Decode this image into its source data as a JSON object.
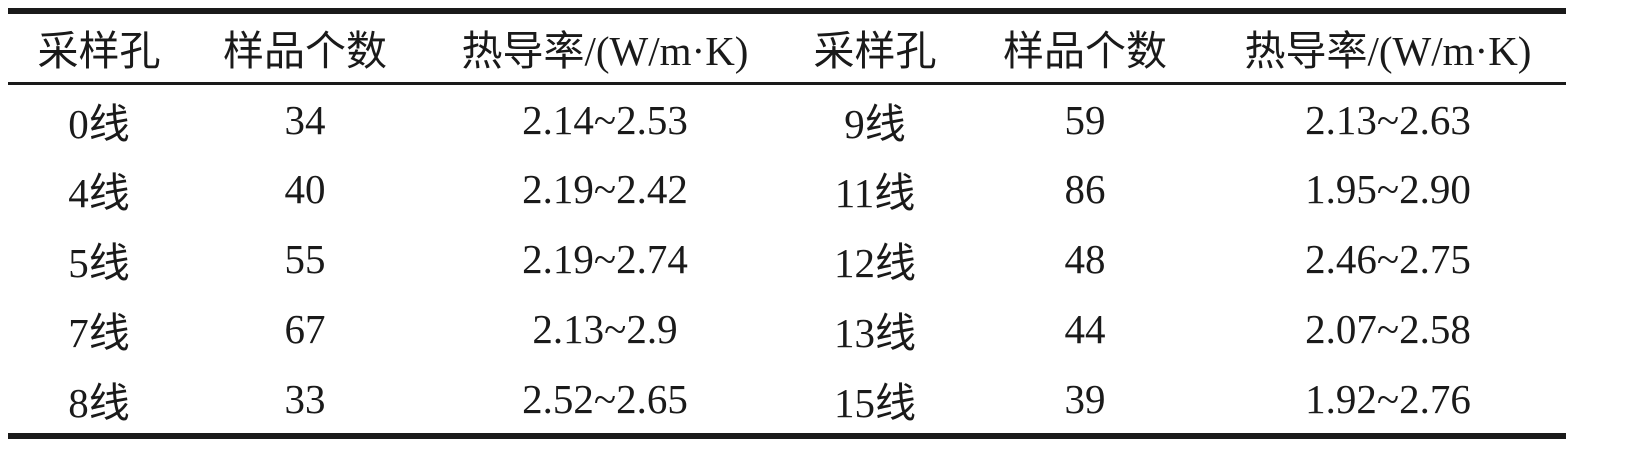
{
  "table": {
    "headers": [
      "采样孔",
      "样品个数",
      "热导率/(W/m·K)",
      "采样孔",
      "样品个数",
      "热导率/(W/m·K)"
    ],
    "rows": [
      [
        "0线",
        "34",
        "2.14~2.53",
        "9线",
        "59",
        "2.13~2.63"
      ],
      [
        "4线",
        "40",
        "2.19~2.42",
        "11线",
        "86",
        "1.95~2.90"
      ],
      [
        "5线",
        "55",
        "2.19~2.74",
        "12线",
        "48",
        "2.46~2.75"
      ],
      [
        "7线",
        "67",
        "2.13~2.9",
        "13线",
        "44",
        "2.07~2.58"
      ],
      [
        "8线",
        "33",
        "2.52~2.65",
        "15线",
        "39",
        "1.92~2.76"
      ]
    ]
  }
}
